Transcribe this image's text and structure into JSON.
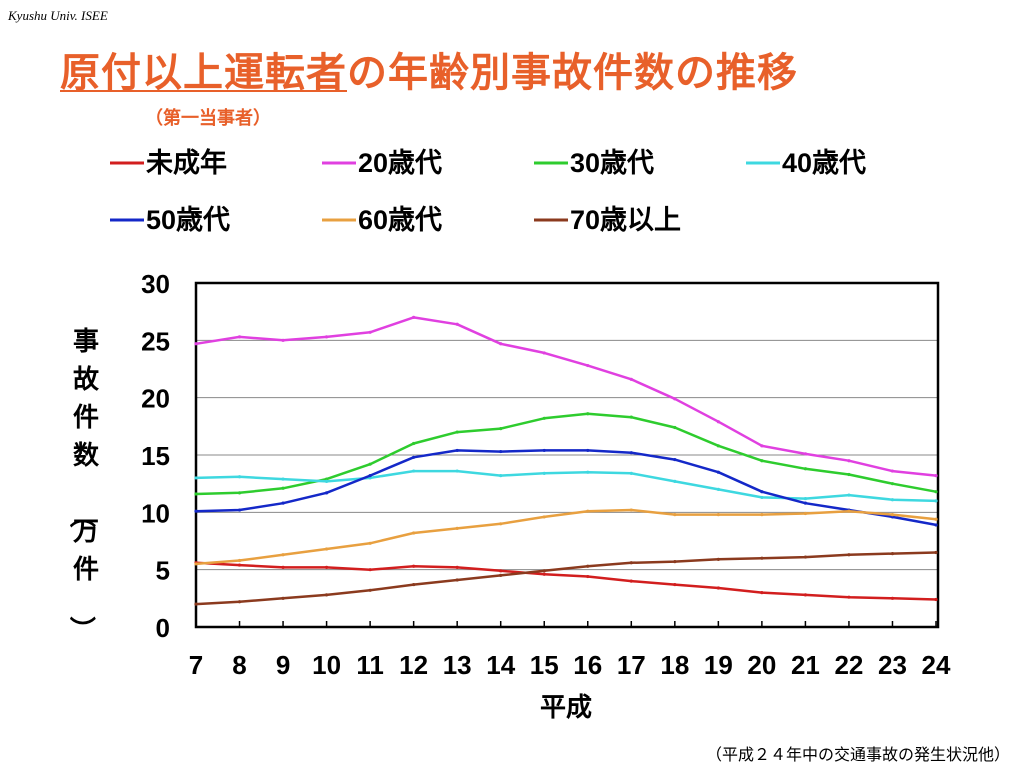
{
  "header": {
    "tag": "Kyushu Univ. ISEE",
    "title_underlined": "原付以上運転者",
    "title_rest": "の年齢別事故件数の推移",
    "subtitle": "（第一当事者）"
  },
  "footer": {
    "source": "（平成２４年中の交通事故の発生状況他）"
  },
  "chart_data": {
    "type": "line",
    "title": "",
    "xlabel": "平成",
    "ylabel": "事故件数（万件）",
    "x": [
      7,
      8,
      9,
      10,
      11,
      12,
      13,
      14,
      15,
      16,
      17,
      18,
      19,
      20,
      21,
      22,
      23,
      24
    ],
    "ylim": [
      0,
      30
    ],
    "yticks": [
      0,
      5,
      10,
      15,
      20,
      25,
      30
    ],
    "grid": true,
    "legend_position": "top",
    "series": [
      {
        "name": "未成年",
        "color": "#d21e1e",
        "values": [
          5.6,
          5.4,
          5.2,
          5.2,
          5.0,
          5.3,
          5.2,
          4.9,
          4.6,
          4.4,
          4.0,
          3.7,
          3.4,
          3.0,
          2.8,
          2.6,
          2.5,
          2.4
        ]
      },
      {
        "name": "20歳代",
        "color": "#e040e0",
        "values": [
          24.7,
          25.3,
          25.0,
          25.3,
          25.7,
          27.0,
          26.4,
          24.7,
          23.9,
          22.8,
          21.6,
          19.9,
          17.9,
          15.8,
          15.1,
          14.5,
          13.6,
          13.2
        ]
      },
      {
        "name": "30歳代",
        "color": "#2ecc2e",
        "values": [
          11.6,
          11.7,
          12.1,
          12.9,
          14.2,
          16.0,
          17.0,
          17.3,
          18.2,
          18.6,
          18.3,
          17.4,
          15.8,
          14.5,
          13.8,
          13.3,
          12.5,
          11.8
        ]
      },
      {
        "name": "40歳代",
        "color": "#3ed8e0",
        "values": [
          13.0,
          13.1,
          12.9,
          12.7,
          13.0,
          13.6,
          13.6,
          13.2,
          13.4,
          13.5,
          13.4,
          12.7,
          12.0,
          11.3,
          11.2,
          11.5,
          11.1,
          11.0
        ]
      },
      {
        "name": "50歳代",
        "color": "#1428c8",
        "values": [
          10.1,
          10.2,
          10.8,
          11.7,
          13.2,
          14.8,
          15.4,
          15.3,
          15.4,
          15.4,
          15.2,
          14.6,
          13.5,
          11.8,
          10.8,
          10.2,
          9.6,
          8.9
        ]
      },
      {
        "name": "60歳代",
        "color": "#e8a040",
        "values": [
          5.5,
          5.8,
          6.3,
          6.8,
          7.3,
          8.2,
          8.6,
          9.0,
          9.6,
          10.1,
          10.2,
          9.8,
          9.8,
          9.8,
          9.9,
          10.1,
          9.8,
          9.4
        ]
      },
      {
        "name": "70歳以上",
        "color": "#8b3a1e",
        "values": [
          2.0,
          2.2,
          2.5,
          2.8,
          3.2,
          3.7,
          4.1,
          4.5,
          4.9,
          5.3,
          5.6,
          5.7,
          5.9,
          6.0,
          6.1,
          6.3,
          6.4,
          6.5
        ]
      }
    ]
  }
}
